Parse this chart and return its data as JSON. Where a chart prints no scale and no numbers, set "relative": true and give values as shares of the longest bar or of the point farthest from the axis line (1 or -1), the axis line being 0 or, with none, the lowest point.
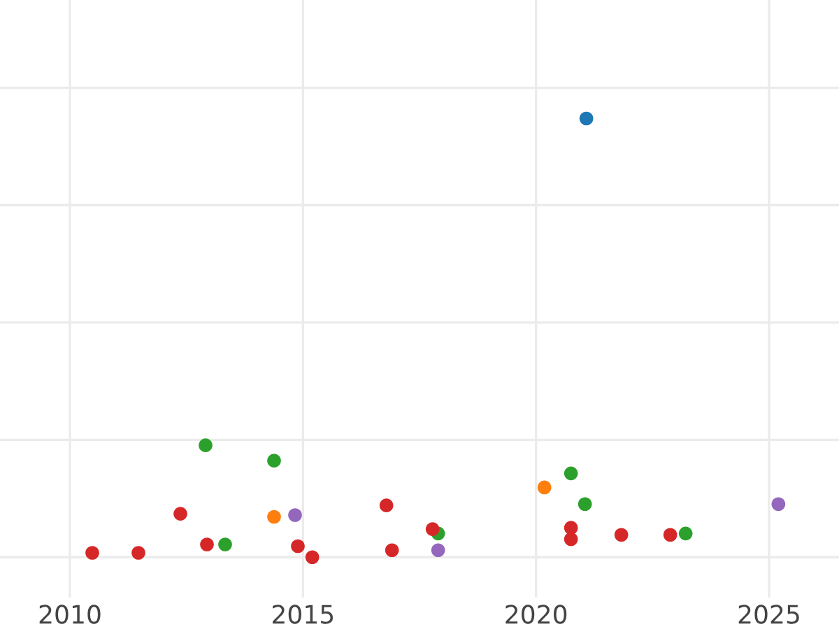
{
  "chart_data": {
    "type": "scatter",
    "relative": true,
    "xlim": [
      2008.5,
      2026.5
    ],
    "xticks": [
      2010,
      2015,
      2020,
      2025
    ],
    "grid": true,
    "marker": "circle",
    "series": [
      {
        "color": "#1f77b4",
        "x": [
          2021.08
        ],
        "values": [
          1.0
        ]
      },
      {
        "color": "#2ca02c",
        "x": [
          2012.91,
          2014.38,
          2013.33,
          2020.75,
          2021.05,
          2017.9,
          2023.21
        ],
        "values": [
          0.255,
          0.22,
          0.029,
          0.191,
          0.121,
          0.054,
          0.054
        ]
      },
      {
        "color": "#ff7f0e",
        "x": [
          2014.38,
          2020.18
        ],
        "values": [
          0.092,
          0.159
        ]
      },
      {
        "color": "#9467bd",
        "x": [
          2014.83,
          2017.9,
          2025.2
        ],
        "values": [
          0.096,
          0.016,
          0.121
        ]
      },
      {
        "color": "#d62728",
        "x": [
          2010.48,
          2011.47,
          2012.37,
          2012.94,
          2014.89,
          2015.2,
          2016.79,
          2016.91,
          2017.78,
          2020.75,
          2020.75,
          2021.83,
          2022.88
        ],
        "values": [
          0.01,
          0.01,
          0.099,
          0.029,
          0.025,
          0.0,
          0.118,
          0.016,
          0.064,
          0.067,
          0.041,
          0.051,
          0.051
        ]
      }
    ]
  }
}
